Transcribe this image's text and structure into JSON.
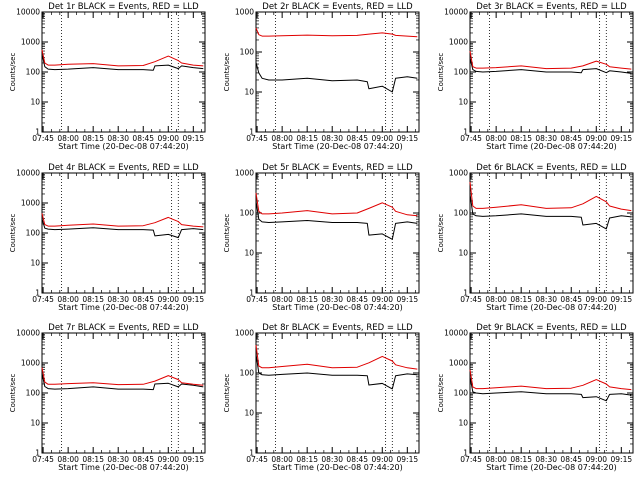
{
  "colors": {
    "events": "#000000",
    "lld": "#e00000",
    "frame": "#000000",
    "background": "#ffffff"
  },
  "chart_data": [
    {
      "type": "line",
      "title": "Det 1r BLACK = Events, RED = LLD",
      "xlabel": "Start Time (20-Dec-08 07:44:20)",
      "ylabel": "Counts/sec",
      "yscale": "log",
      "ylim": [
        1,
        10000
      ],
      "xlim": [
        "07:44:20",
        "09:22:00"
      ],
      "xticks": [
        "07:45",
        "08:00",
        "08:15",
        "08:30",
        "08:45",
        "09:00",
        "09:15"
      ],
      "yticks": [
        "1",
        "10",
        "100",
        "1000",
        "10000"
      ],
      "vlines": [
        "07:56",
        "09:02",
        "09:06"
      ],
      "series": [
        {
          "name": "Events",
          "x": [
            "07:44",
            "07:46",
            "07:48",
            "07:52",
            "08:00",
            "08:15",
            "08:30",
            "08:45",
            "08:51",
            "08:52",
            "09:00",
            "09:06",
            "09:08",
            "09:15",
            "09:21"
          ],
          "values": [
            400,
            150,
            125,
            120,
            125,
            140,
            120,
            120,
            115,
            160,
            170,
            130,
            160,
            140,
            130
          ]
        },
        {
          "name": "LLD",
          "x": [
            "07:44",
            "07:46",
            "07:48",
            "07:52",
            "08:00",
            "08:15",
            "08:30",
            "08:45",
            "08:52",
            "09:00",
            "09:06",
            "09:08",
            "09:15",
            "09:21"
          ],
          "values": [
            550,
            200,
            170,
            170,
            180,
            190,
            160,
            165,
            220,
            340,
            240,
            200,
            170,
            160
          ]
        }
      ]
    },
    {
      "type": "line",
      "title": "Det 2r BLACK = Events, RED = LLD",
      "xlabel": "Start Time (20-Dec-08 07:44:20)",
      "ylabel": "Counts/sec",
      "yscale": "log",
      "ylim": [
        1,
        1000
      ],
      "xlim": [
        "07:44:20",
        "09:22:00"
      ],
      "xticks": [
        "07:45",
        "08:00",
        "08:15",
        "08:30",
        "08:45",
        "09:00",
        "09:15"
      ],
      "yticks": [
        "1",
        "10",
        "100",
        "1000"
      ],
      "vlines": [
        "07:56",
        "09:02",
        "09:06"
      ],
      "series": [
        {
          "name": "Events",
          "x": [
            "07:44",
            "07:46",
            "07:48",
            "07:52",
            "08:00",
            "08:15",
            "08:30",
            "08:45",
            "08:51",
            "08:52",
            "09:00",
            "09:06",
            "09:08",
            "09:15",
            "09:21"
          ],
          "values": [
            55,
            30,
            22,
            20,
            20,
            22,
            19,
            20,
            18,
            12,
            14,
            10,
            22,
            24,
            22
          ]
        },
        {
          "name": "LLD",
          "x": [
            "07:44",
            "07:46",
            "07:48",
            "07:52",
            "08:00",
            "08:15",
            "08:30",
            "08:45",
            "08:52",
            "09:00",
            "09:06",
            "09:08",
            "09:15",
            "09:21"
          ],
          "values": [
            400,
            270,
            250,
            250,
            255,
            265,
            255,
            260,
            280,
            300,
            280,
            260,
            250,
            240
          ]
        }
      ]
    },
    {
      "type": "line",
      "title": "Det 3r BLACK = Events, RED = LLD",
      "xlabel": "Start Time (20-Dec-08 07:44:20)",
      "ylabel": "Counts/sec",
      "yscale": "log",
      "ylim": [
        1,
        10000
      ],
      "xlim": [
        "07:44:20",
        "09:22:00"
      ],
      "xticks": [
        "07:45",
        "08:00",
        "08:15",
        "08:30",
        "08:45",
        "09:00",
        "09:15"
      ],
      "yticks": [
        "1",
        "10",
        "100",
        "1000",
        "10000"
      ],
      "vlines": [
        "07:56",
        "09:02",
        "09:06"
      ],
      "series": [
        {
          "name": "Events",
          "x": [
            "07:44",
            "07:46",
            "07:48",
            "07:52",
            "08:00",
            "08:15",
            "08:30",
            "08:45",
            "08:51",
            "08:52",
            "09:00",
            "09:06",
            "09:08",
            "09:15",
            "09:21"
          ],
          "values": [
            300,
            120,
            105,
            100,
            105,
            120,
            100,
            100,
            95,
            120,
            130,
            95,
            110,
            100,
            90
          ]
        },
        {
          "name": "LLD",
          "x": [
            "07:44",
            "07:46",
            "07:48",
            "07:52",
            "08:00",
            "08:15",
            "08:30",
            "08:45",
            "08:52",
            "09:00",
            "09:06",
            "09:08",
            "09:15",
            "09:21"
          ],
          "values": [
            500,
            150,
            135,
            135,
            140,
            160,
            130,
            135,
            160,
            230,
            180,
            150,
            135,
            125
          ]
        }
      ]
    },
    {
      "type": "line",
      "title": "Det 4r BLACK = Events, RED = LLD",
      "xlabel": "Start Time (20-Dec-08 07:44:20)",
      "ylabel": "Counts/sec",
      "yscale": "log",
      "ylim": [
        1,
        10000
      ],
      "xlim": [
        "07:44:20",
        "09:22:00"
      ],
      "xticks": [
        "07:45",
        "08:00",
        "08:15",
        "08:30",
        "08:45",
        "09:00",
        "09:15"
      ],
      "yticks": [
        "1",
        "10",
        "100",
        "1000",
        "10000"
      ],
      "vlines": [
        "07:56",
        "09:02",
        "09:06"
      ],
      "series": [
        {
          "name": "Events",
          "x": [
            "07:44",
            "07:46",
            "07:48",
            "07:52",
            "08:00",
            "08:15",
            "08:30",
            "08:45",
            "08:51",
            "08:52",
            "09:00",
            "09:06",
            "09:08",
            "09:15",
            "09:21"
          ],
          "values": [
            300,
            145,
            135,
            130,
            135,
            150,
            130,
            130,
            125,
            80,
            90,
            70,
            130,
            140,
            130
          ]
        },
        {
          "name": "LLD",
          "x": [
            "07:44",
            "07:46",
            "07:48",
            "07:52",
            "08:00",
            "08:15",
            "08:30",
            "08:45",
            "08:52",
            "09:00",
            "09:06",
            "09:08",
            "09:15",
            "09:21"
          ],
          "values": [
            450,
            190,
            170,
            170,
            180,
            200,
            170,
            175,
            220,
            330,
            240,
            190,
            170,
            160
          ]
        }
      ]
    },
    {
      "type": "line",
      "title": "Det 5r BLACK = Events, RED = LLD",
      "xlabel": "Start Time (20-Dec-08 07:44:20)",
      "ylabel": "Counts/sec",
      "yscale": "log",
      "ylim": [
        1,
        1000
      ],
      "xlim": [
        "07:44:20",
        "09:22:00"
      ],
      "xticks": [
        "07:45",
        "08:00",
        "08:15",
        "08:30",
        "08:45",
        "09:00",
        "09:15"
      ],
      "yticks": [
        "1",
        "10",
        "100",
        "1000"
      ],
      "vlines": [
        "07:56",
        "09:02",
        "09:06"
      ],
      "series": [
        {
          "name": "Events",
          "x": [
            "07:44",
            "07:46",
            "07:48",
            "07:52",
            "08:00",
            "08:15",
            "08:30",
            "08:45",
            "08:51",
            "08:52",
            "09:00",
            "09:06",
            "09:08",
            "09:15",
            "09:21"
          ],
          "values": [
            200,
            70,
            60,
            58,
            60,
            65,
            58,
            58,
            55,
            28,
            30,
            22,
            55,
            60,
            55
          ]
        },
        {
          "name": "LLD",
          "x": [
            "07:44",
            "07:46",
            "07:48",
            "07:52",
            "08:00",
            "08:15",
            "08:30",
            "08:45",
            "08:52",
            "09:00",
            "09:06",
            "09:08",
            "09:15",
            "09:21"
          ],
          "values": [
            320,
            110,
            95,
            95,
            100,
            115,
            95,
            100,
            130,
            180,
            140,
            110,
            90,
            85
          ]
        }
      ]
    },
    {
      "type": "line",
      "title": "Det 6r BLACK = Events, RED = LLD",
      "xlabel": "Start Time (20-Dec-08 07:44:20)",
      "ylabel": "Counts/sec",
      "yscale": "log",
      "ylim": [
        1,
        1000
      ],
      "xlim": [
        "07:44:20",
        "09:22:00"
      ],
      "xticks": [
        "07:45",
        "08:00",
        "08:15",
        "08:30",
        "08:45",
        "09:00",
        "09:15"
      ],
      "yticks": [
        "1",
        "10",
        "100",
        "1000"
      ],
      "vlines": [
        "07:56",
        "09:02",
        "09:06"
      ],
      "series": [
        {
          "name": "Events",
          "x": [
            "07:44",
            "07:46",
            "07:48",
            "07:52",
            "08:00",
            "08:15",
            "08:30",
            "08:45",
            "08:51",
            "08:52",
            "09:00",
            "09:06",
            "09:08",
            "09:15",
            "09:21"
          ],
          "values": [
            300,
            95,
            85,
            82,
            85,
            95,
            82,
            82,
            78,
            50,
            55,
            40,
            75,
            85,
            80
          ]
        },
        {
          "name": "LLD",
          "x": [
            "07:44",
            "07:46",
            "07:48",
            "07:52",
            "08:00",
            "08:15",
            "08:30",
            "08:45",
            "08:52",
            "09:00",
            "09:06",
            "09:08",
            "09:15",
            "09:21"
          ],
          "values": [
            600,
            150,
            130,
            130,
            140,
            160,
            130,
            135,
            170,
            260,
            190,
            150,
            125,
            115
          ]
        }
      ]
    },
    {
      "type": "line",
      "title": "Det 7r BLACK = Events, RED = LLD",
      "xlabel": "Start Time (20-Dec-08 07:44:20)",
      "ylabel": "Counts/sec",
      "yscale": "log",
      "ylim": [
        1,
        10000
      ],
      "xlim": [
        "07:44:20",
        "09:22:00"
      ],
      "xticks": [
        "07:45",
        "08:00",
        "08:15",
        "08:30",
        "08:45",
        "09:00",
        "09:15"
      ],
      "yticks": [
        "1",
        "10",
        "100",
        "1000",
        "10000"
      ],
      "vlines": [
        "07:56",
        "09:02",
        "09:06"
      ],
      "series": [
        {
          "name": "Events",
          "x": [
            "07:44",
            "07:46",
            "07:48",
            "07:52",
            "08:00",
            "08:15",
            "08:30",
            "08:45",
            "08:51",
            "08:52",
            "09:00",
            "09:06",
            "09:08",
            "09:15",
            "09:21"
          ],
          "values": [
            450,
            165,
            140,
            135,
            140,
            160,
            135,
            135,
            130,
            200,
            210,
            160,
            200,
            180,
            160
          ]
        },
        {
          "name": "LLD",
          "x": [
            "07:44",
            "07:46",
            "07:48",
            "07:52",
            "08:00",
            "08:15",
            "08:30",
            "08:45",
            "08:52",
            "09:00",
            "09:06",
            "09:08",
            "09:15",
            "09:21"
          ],
          "values": [
            700,
            230,
            195,
            195,
            205,
            220,
            190,
            195,
            250,
            380,
            280,
            220,
            195,
            180
          ]
        }
      ]
    },
    {
      "type": "line",
      "title": "Det 8r BLACK = Events, RED = LLD",
      "xlabel": "Start Time (20-Dec-08 07:44:20)",
      "ylabel": "Counts/sec",
      "yscale": "log",
      "ylim": [
        1,
        1000
      ],
      "xlim": [
        "07:44:20",
        "09:22:00"
      ],
      "xticks": [
        "07:45",
        "08:00",
        "08:15",
        "08:30",
        "08:45",
        "09:00",
        "09:15"
      ],
      "yticks": [
        "1",
        "10",
        "100",
        "1000"
      ],
      "vlines": [
        "07:56",
        "09:02",
        "09:06"
      ],
      "series": [
        {
          "name": "Events",
          "x": [
            "07:44",
            "07:46",
            "07:48",
            "07:52",
            "08:00",
            "08:15",
            "08:30",
            "08:45",
            "08:51",
            "08:52",
            "09:00",
            "09:06",
            "09:08",
            "09:15",
            "09:21"
          ],
          "values": [
            300,
            100,
            90,
            88,
            92,
            100,
            88,
            88,
            85,
            50,
            55,
            40,
            85,
            95,
            90
          ]
        },
        {
          "name": "LLD",
          "x": [
            "07:44",
            "07:46",
            "07:48",
            "07:52",
            "08:00",
            "08:15",
            "08:30",
            "08:45",
            "08:52",
            "09:00",
            "09:06",
            "09:08",
            "09:15",
            "09:21"
          ],
          "values": [
            500,
            150,
            135,
            135,
            145,
            165,
            135,
            140,
            180,
            260,
            200,
            160,
            135,
            125
          ]
        }
      ]
    },
    {
      "type": "line",
      "title": "Det 9r BLACK = Events, RED = LLD",
      "xlabel": "Start Time (20-Dec-08 07:44:20)",
      "ylabel": "Counts/sec",
      "yscale": "log",
      "ylim": [
        1,
        10000
      ],
      "xlim": [
        "07:44:20",
        "09:22:00"
      ],
      "xticks": [
        "07:45",
        "08:00",
        "08:15",
        "08:30",
        "08:45",
        "09:00",
        "09:15"
      ],
      "yticks": [
        "1",
        "10",
        "100",
        "1000",
        "10000"
      ],
      "vlines": [
        "07:56",
        "09:02",
        "09:06"
      ],
      "series": [
        {
          "name": "Events",
          "x": [
            "07:44",
            "07:46",
            "07:48",
            "07:52",
            "08:00",
            "08:15",
            "08:30",
            "08:45",
            "08:51",
            "08:52",
            "09:00",
            "09:06",
            "09:08",
            "09:15",
            "09:21"
          ],
          "values": [
            350,
            110,
            100,
            95,
            100,
            110,
            95,
            95,
            90,
            70,
            75,
            55,
            90,
            95,
            85
          ]
        },
        {
          "name": "LLD",
          "x": [
            "07:44",
            "07:46",
            "07:48",
            "07:52",
            "08:00",
            "08:15",
            "08:30",
            "08:45",
            "08:52",
            "09:00",
            "09:06",
            "09:08",
            "09:15",
            "09:21"
          ],
          "values": [
            600,
            160,
            140,
            140,
            150,
            170,
            140,
            145,
            180,
            280,
            200,
            160,
            140,
            130
          ]
        }
      ]
    }
  ]
}
